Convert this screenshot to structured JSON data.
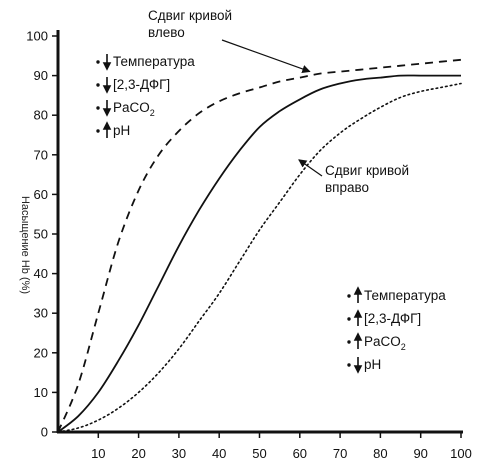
{
  "chart_data": {
    "type": "line",
    "ylabel": "Насыщение Hb (%)",
    "xlabel": "",
    "xlim": [
      0,
      100
    ],
    "ylim": [
      0,
      100
    ],
    "x_ticks": [
      "10",
      "20",
      "30",
      "40",
      "50",
      "60",
      "70",
      "80",
      "90",
      "100"
    ],
    "y_ticks": [
      "0",
      "10",
      "20",
      "30",
      "40",
      "50",
      "60",
      "70",
      "80",
      "90",
      "100"
    ],
    "series": [
      {
        "style": "solid",
        "x": [
          0,
          5,
          10,
          15,
          20,
          25,
          30,
          35,
          40,
          45,
          50,
          55,
          60,
          65,
          70,
          75,
          80,
          85,
          90,
          95,
          100
        ],
        "y": [
          0,
          4,
          10,
          18,
          27,
          37,
          47,
          56,
          64,
          71,
          77,
          81,
          84,
          86.5,
          88,
          89,
          89.5,
          90,
          90,
          90,
          90
        ]
      },
      {
        "style": "dashed",
        "x": [
          0,
          5,
          10,
          15,
          20,
          25,
          30,
          35,
          40,
          45,
          50,
          55,
          60,
          65,
          70,
          75,
          80,
          85,
          90,
          95,
          100
        ],
        "y": [
          0,
          12,
          30,
          48,
          61,
          70,
          76,
          80.5,
          83.5,
          85.5,
          87,
          88.5,
          89.5,
          90.5,
          91,
          91.5,
          92,
          92.5,
          93,
          93.5,
          94
        ]
      },
      {
        "style": "dotted",
        "x": [
          0,
          5,
          10,
          15,
          20,
          25,
          30,
          35,
          40,
          45,
          50,
          55,
          60,
          65,
          70,
          75,
          80,
          85,
          90,
          95,
          100
        ],
        "y": [
          0,
          1,
          3,
          6,
          10,
          15,
          21,
          28,
          35,
          43,
          51,
          58,
          65,
          71,
          75.5,
          79,
          82,
          84.5,
          86,
          87,
          88
        ]
      }
    ],
    "annotations": [
      {
        "text_lines": [
          "Сдвиг кривой",
          "влево"
        ],
        "points_to": "dashed",
        "at": [
          62,
          90
        ]
      },
      {
        "text_lines": [
          "Сдвиг кривой",
          "вправо"
        ],
        "points_to": "dotted",
        "at": [
          60,
          68
        ]
      }
    ],
    "legend_left": {
      "direction": "down",
      "items": [
        {
          "text": "Температура"
        },
        {
          "text": "[2,3-ДФГ]"
        },
        {
          "text": "PaCO",
          "sub": "2"
        },
        {
          "text": "pH",
          "direction": "up"
        }
      ]
    },
    "legend_right": {
      "direction": "up",
      "items": [
        {
          "text": "Температура"
        },
        {
          "text": "[2,3-ДФГ]"
        },
        {
          "text": "PaCO",
          "sub": "2"
        },
        {
          "text": "pH",
          "direction": "down"
        }
      ]
    }
  }
}
